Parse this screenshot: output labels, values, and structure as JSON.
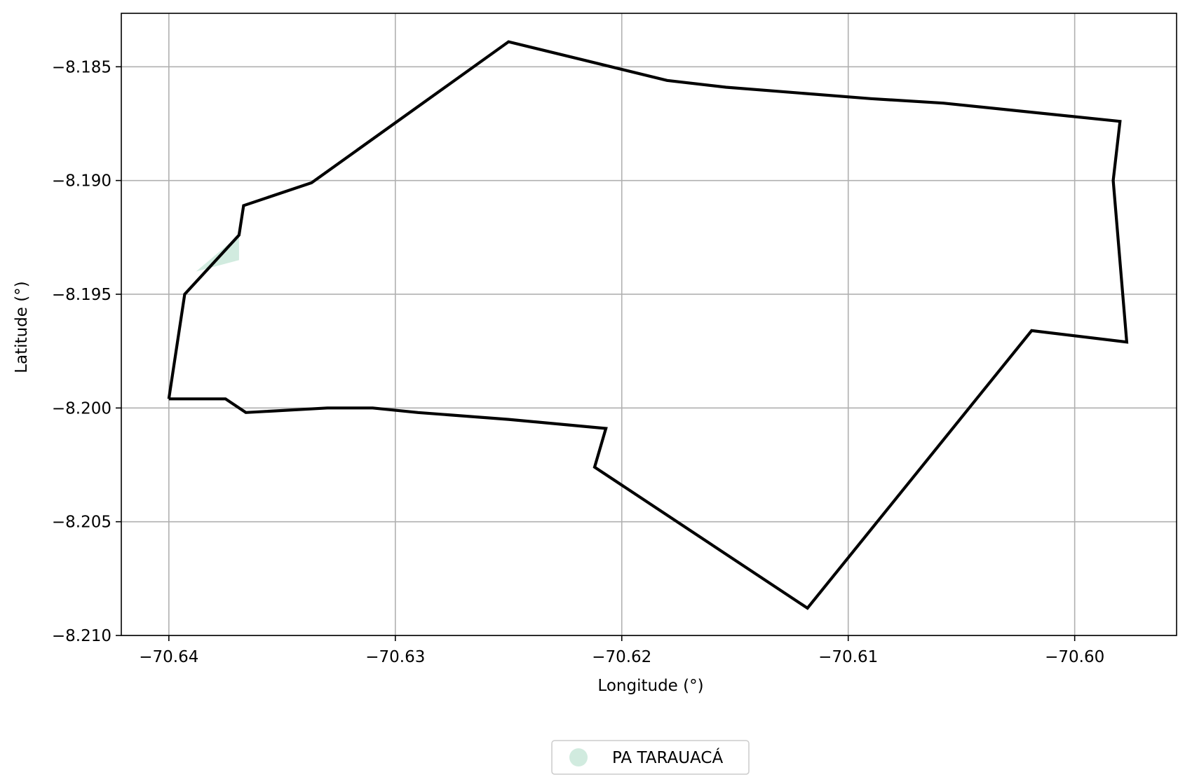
{
  "chart_data": {
    "type": "map",
    "xlabel": "Longitude (°)",
    "ylabel": "Latitude (°)",
    "xlim": [
      -70.6421,
      -70.5955
    ],
    "ylim": [
      -8.21,
      -8.18265
    ],
    "grid": true,
    "xticks": [
      {
        "value": -70.64,
        "label": "−70.64"
      },
      {
        "value": -70.63,
        "label": "−70.63"
      },
      {
        "value": -70.62,
        "label": "−70.62"
      },
      {
        "value": -70.61,
        "label": "−70.61"
      },
      {
        "value": -70.6,
        "label": "−70.60"
      }
    ],
    "yticks": [
      {
        "value": -8.185,
        "label": "−8.185"
      },
      {
        "value": -8.19,
        "label": "−8.190"
      },
      {
        "value": -8.195,
        "label": "−8.195"
      },
      {
        "value": -8.2,
        "label": "−8.200"
      },
      {
        "value": -8.205,
        "label": "−8.205"
      },
      {
        "value": -8.21,
        "label": "−8.210"
      }
    ],
    "boundary_color": "#000000",
    "fill_color": "#d1ebdf",
    "legend_position": "bottom-center",
    "legend": [
      {
        "label": "PA TARAUACÁ",
        "color": "#d1ebdf"
      }
    ],
    "boundary": [
      [
        -70.64,
        -8.1996
      ],
      [
        -70.6375,
        -8.1996
      ],
      [
        -70.6366,
        -8.2002
      ],
      [
        -70.633,
        -8.2
      ],
      [
        -70.631,
        -8.2
      ],
      [
        -70.629,
        -8.2002
      ],
      [
        -70.625,
        -8.2005
      ],
      [
        -70.6207,
        -8.2009
      ],
      [
        -70.6212,
        -8.2026
      ],
      [
        -70.6118,
        -8.2088
      ],
      [
        -70.6019,
        -8.1966
      ],
      [
        -70.5977,
        -8.1971
      ],
      [
        -70.5983,
        -8.19
      ],
      [
        -70.598,
        -8.1874
      ],
      [
        -70.6058,
        -8.1866
      ],
      [
        -70.609,
        -8.1864
      ],
      [
        -70.6154,
        -8.1859
      ],
      [
        -70.618,
        -8.1856
      ],
      [
        -70.6217,
        -8.1847
      ],
      [
        -70.625,
        -8.1839
      ],
      [
        -70.6337,
        -8.1901
      ],
      [
        -70.6367,
        -8.1911
      ],
      [
        -70.6369,
        -8.1924
      ],
      [
        -70.6393,
        -8.195
      ],
      [
        -70.64,
        -8.1996
      ]
    ],
    "fill_area": [
      [
        -70.6369,
        -8.1924
      ],
      [
        -70.6388,
        -8.194
      ],
      [
        -70.6369,
        -8.1935
      ],
      [
        -70.6369,
        -8.1924
      ]
    ]
  }
}
